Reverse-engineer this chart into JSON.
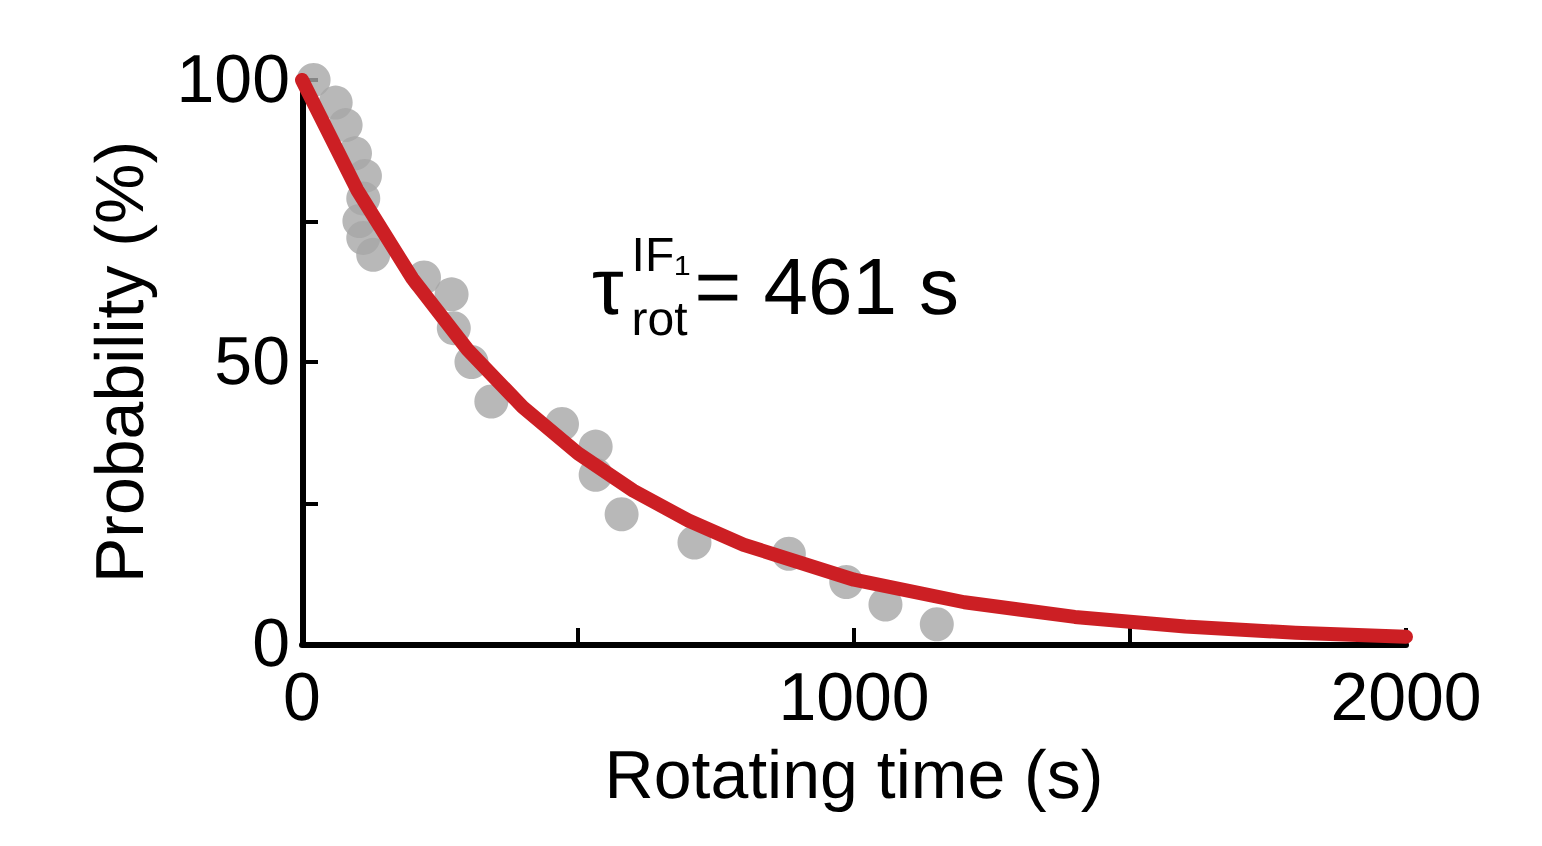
{
  "chart_data": {
    "type": "scatter",
    "xlabel": "Rotating time (s)",
    "ylabel": "Probability (%)",
    "annotations": [
      "τ$^{IF₁}$$_{rot}$= 461 s"
    ],
    "xlim": [
      0,
      2000
    ],
    "ylim": [
      0,
      100
    ],
    "xticks": [
      0,
      {
        "value": 500,
        "label": null
      },
      1000,
      {
        "value": 1500,
        "label": null
      },
      2000
    ],
    "yticks": [
      0,
      {
        "value": 25,
        "label": null
      },
      50,
      {
        "value": 75,
        "label": null
      },
      100
    ],
    "grid": false,
    "series": [
      {
        "color": "#a6a6a6",
        "marker": "circle",
        "x": [
          21,
          61,
          79,
          96,
          104,
          111,
          111,
          114,
          129,
          221,
          271,
          275,
          307,
          343,
          471,
          532,
          532,
          579,
          711,
          882,
          986,
          1057,
          1150
        ],
        "values": [
          100,
          96,
          92,
          87,
          75,
          79,
          72,
          83,
          69,
          65,
          62,
          56,
          50,
          43,
          39,
          35,
          30,
          23,
          18,
          16,
          11,
          7,
          3.5
        ]
      },
      {
        "type": "line",
        "color": "#cc1f24",
        "marker": "none",
        "line_style": "solid",
        "x": [
          0,
          100,
          200,
          300,
          400,
          500,
          600,
          700,
          800,
          1000,
          1200,
          1400,
          1600,
          1800,
          2000
        ],
        "values": [
          100,
          80.5,
          64.8,
          52.2,
          42,
          33.8,
          27.2,
          21.9,
          17.6,
          11.4,
          7.4,
          4.8,
          3.1,
          2,
          1.3
        ]
      }
    ]
  }
}
